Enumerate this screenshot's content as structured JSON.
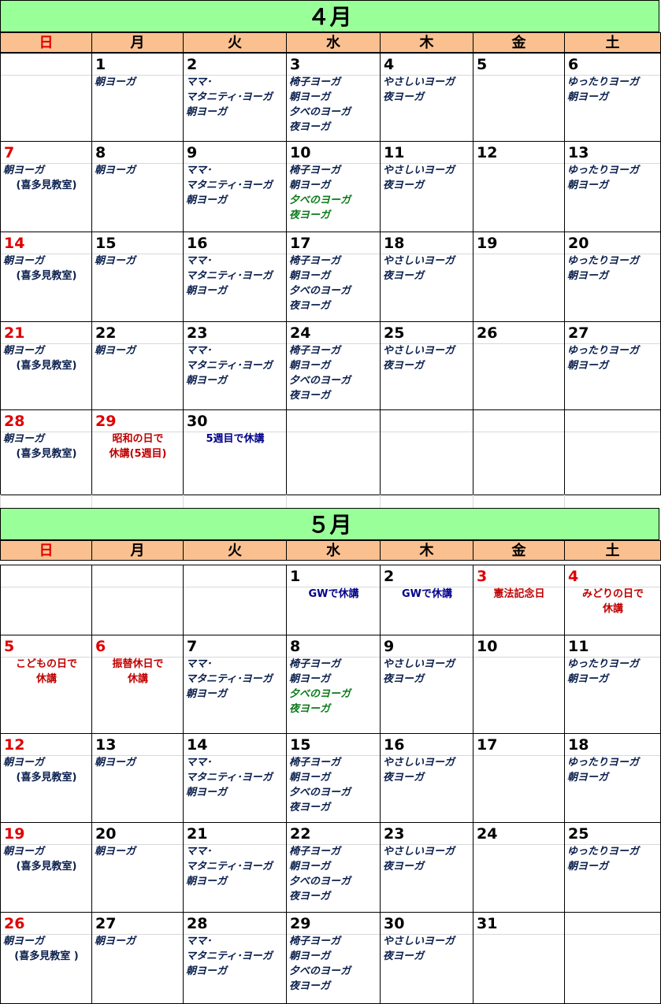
{
  "months": [
    {
      "title": "４月",
      "weekdays": [
        "日",
        "月",
        "火",
        "水",
        "木",
        "金",
        "土"
      ],
      "weeks": [
        [
          {
            "day": "",
            "red": false,
            "lines": []
          },
          {
            "day": "1",
            "lines": [
              {
                "t": "朝ヨーガ"
              }
            ]
          },
          {
            "day": "2",
            "lines": [
              {
                "t": "ママ･"
              },
              {
                "t": "マタニティ･ヨーガ"
              },
              {
                "t": "朝ヨーガ"
              }
            ]
          },
          {
            "day": "3",
            "lines": [
              {
                "t": "椅子ヨーガ"
              },
              {
                "t": "朝ヨーガ"
              },
              {
                "t": "夕べのヨーガ"
              },
              {
                "t": "夜ヨーガ"
              }
            ]
          },
          {
            "day": "4",
            "lines": [
              {
                "t": "やさしいヨーガ"
              },
              {
                "t": "夜ヨーガ"
              }
            ]
          },
          {
            "day": "5",
            "lines": []
          },
          {
            "day": "6",
            "lines": [
              {
                "t": "ゆったりヨーガ"
              },
              {
                "t": "朝ヨーガ"
              }
            ]
          }
        ],
        [
          {
            "day": "7",
            "red": true,
            "lines": [
              {
                "t": "朝ヨーガ"
              },
              {
                "t": "(喜多見教室)",
                "c": "center"
              }
            ]
          },
          {
            "day": "8",
            "lines": [
              {
                "t": "朝ヨーガ"
              }
            ]
          },
          {
            "day": "9",
            "lines": [
              {
                "t": "ママ･"
              },
              {
                "t": "マタニティ･ヨーガ"
              },
              {
                "t": "朝ヨーガ"
              }
            ]
          },
          {
            "day": "10",
            "lines": [
              {
                "t": "椅子ヨーガ"
              },
              {
                "t": "朝ヨーガ"
              },
              {
                "t": "夕べのヨーガ",
                "c": "green"
              },
              {
                "t": "夜ヨーガ",
                "c": "green"
              }
            ]
          },
          {
            "day": "11",
            "lines": [
              {
                "t": "やさしいヨーガ"
              },
              {
                "t": "夜ヨーガ"
              }
            ]
          },
          {
            "day": "12",
            "lines": []
          },
          {
            "day": "13",
            "lines": [
              {
                "t": "ゆったりヨーガ"
              },
              {
                "t": "朝ヨーガ"
              }
            ]
          }
        ],
        [
          {
            "day": "14",
            "red": true,
            "lines": [
              {
                "t": "朝ヨーガ"
              },
              {
                "t": "(喜多見教室)",
                "c": "center"
              }
            ]
          },
          {
            "day": "15",
            "lines": [
              {
                "t": "朝ヨーガ"
              }
            ]
          },
          {
            "day": "16",
            "lines": [
              {
                "t": "ママ･"
              },
              {
                "t": "マタニティ･ヨーガ"
              },
              {
                "t": "朝ヨーガ"
              }
            ]
          },
          {
            "day": "17",
            "lines": [
              {
                "t": "椅子ヨーガ"
              },
              {
                "t": "朝ヨーガ"
              },
              {
                "t": "夕べのヨーガ"
              },
              {
                "t": "夜ヨーガ"
              }
            ]
          },
          {
            "day": "18",
            "lines": [
              {
                "t": "やさしいヨーガ"
              },
              {
                "t": "夜ヨーガ"
              }
            ]
          },
          {
            "day": "19",
            "lines": []
          },
          {
            "day": "20",
            "lines": [
              {
                "t": "ゆったりヨーガ"
              },
              {
                "t": "朝ヨーガ"
              }
            ]
          }
        ],
        [
          {
            "day": "21",
            "red": true,
            "lines": [
              {
                "t": "朝ヨーガ"
              },
              {
                "t": "(喜多見教室)",
                "c": "center"
              }
            ]
          },
          {
            "day": "22",
            "lines": [
              {
                "t": "朝ヨーガ"
              }
            ]
          },
          {
            "day": "23",
            "lines": [
              {
                "t": "ママ･"
              },
              {
                "t": "マタニティ･ヨーガ"
              },
              {
                "t": "朝ヨーガ"
              }
            ]
          },
          {
            "day": "24",
            "lines": [
              {
                "t": "椅子ヨーガ"
              },
              {
                "t": "朝ヨーガ"
              },
              {
                "t": "夕べのヨーガ"
              },
              {
                "t": "夜ヨーガ"
              }
            ]
          },
          {
            "day": "25",
            "lines": [
              {
                "t": "やさしいヨーガ"
              },
              {
                "t": "夜ヨーガ"
              }
            ]
          },
          {
            "day": "26",
            "lines": []
          },
          {
            "day": "27",
            "lines": [
              {
                "t": "ゆったりヨーガ"
              },
              {
                "t": "朝ヨーガ"
              }
            ]
          }
        ],
        [
          {
            "day": "28",
            "red": true,
            "lines": [
              {
                "t": "朝ヨーガ"
              },
              {
                "t": "(喜多見教室)",
                "c": "center"
              }
            ]
          },
          {
            "day": "29",
            "red": true,
            "lines": [
              {
                "t": "昭和の日で",
                "c": "red"
              },
              {
                "t": "休講(5週目)",
                "c": "red"
              }
            ]
          },
          {
            "day": "30",
            "lines": [
              {
                "t": "5週目で休講",
                "c": "blue"
              }
            ]
          },
          {
            "day": "",
            "lines": []
          },
          {
            "day": "",
            "lines": []
          },
          {
            "day": "",
            "lines": []
          },
          {
            "day": "",
            "lines": []
          }
        ]
      ]
    },
    {
      "title": "５月",
      "weekdays": [
        "日",
        "月",
        "火",
        "水",
        "木",
        "金",
        "土"
      ],
      "weeks": [
        [
          {
            "day": "",
            "lines": []
          },
          {
            "day": "",
            "lines": []
          },
          {
            "day": "",
            "lines": []
          },
          {
            "day": "1",
            "lines": [
              {
                "t": "GWで休講",
                "c": "blue"
              }
            ]
          },
          {
            "day": "2",
            "lines": [
              {
                "t": "GWで休講",
                "c": "blue"
              }
            ]
          },
          {
            "day": "3",
            "red": true,
            "lines": [
              {
                "t": "憲法記念日",
                "c": "red"
              }
            ]
          },
          {
            "day": "4",
            "red": true,
            "lines": [
              {
                "t": "みどりの日で",
                "c": "red"
              },
              {
                "t": "休講",
                "c": "red"
              }
            ]
          }
        ],
        [
          {
            "day": "5",
            "red": true,
            "lines": [
              {
                "t": "こどもの日で",
                "c": "red"
              },
              {
                "t": "休講",
                "c": "red"
              }
            ]
          },
          {
            "day": "6",
            "red": true,
            "lines": [
              {
                "t": "振替休日で",
                "c": "red"
              },
              {
                "t": "休講",
                "c": "red"
              }
            ]
          },
          {
            "day": "7",
            "lines": [
              {
                "t": "ママ･"
              },
              {
                "t": "マタニティ･ヨーガ"
              },
              {
                "t": "朝ヨーガ"
              }
            ]
          },
          {
            "day": "8",
            "lines": [
              {
                "t": "椅子ヨーガ"
              },
              {
                "t": "朝ヨーガ"
              },
              {
                "t": "夕べのヨーガ",
                "c": "green"
              },
              {
                "t": "夜ヨーガ",
                "c": "green"
              }
            ]
          },
          {
            "day": "9",
            "lines": [
              {
                "t": "やさしいヨーガ"
              },
              {
                "t": "夜ヨーガ"
              }
            ]
          },
          {
            "day": "10",
            "lines": []
          },
          {
            "day": "11",
            "lines": [
              {
                "t": "ゆったりヨーガ"
              },
              {
                "t": "朝ヨーガ"
              }
            ]
          }
        ],
        [
          {
            "day": "12",
            "red": true,
            "lines": [
              {
                "t": "朝ヨーガ"
              },
              {
                "t": "(喜多見教室)",
                "c": "center"
              }
            ]
          },
          {
            "day": "13",
            "lines": [
              {
                "t": "朝ヨーガ"
              }
            ]
          },
          {
            "day": "14",
            "lines": [
              {
                "t": "ママ･"
              },
              {
                "t": "マタニティ･ヨーガ"
              },
              {
                "t": "朝ヨーガ"
              }
            ]
          },
          {
            "day": "15",
            "lines": [
              {
                "t": "椅子ヨーガ"
              },
              {
                "t": "朝ヨーガ"
              },
              {
                "t": "夕べのヨーガ"
              },
              {
                "t": "夜ヨーガ"
              }
            ]
          },
          {
            "day": "16",
            "lines": [
              {
                "t": "やさしいヨーガ"
              },
              {
                "t": "夜ヨーガ"
              }
            ]
          },
          {
            "day": "17",
            "lines": []
          },
          {
            "day": "18",
            "lines": [
              {
                "t": "ゆったりヨーガ"
              },
              {
                "t": "朝ヨーガ"
              }
            ]
          }
        ],
        [
          {
            "day": "19",
            "red": true,
            "lines": [
              {
                "t": "朝ヨーガ"
              },
              {
                "t": "(喜多見教室)",
                "c": "center"
              }
            ]
          },
          {
            "day": "20",
            "lines": [
              {
                "t": "朝ヨーガ"
              }
            ]
          },
          {
            "day": "21",
            "lines": [
              {
                "t": "ママ･"
              },
              {
                "t": "マタニティ･ヨーガ"
              },
              {
                "t": "朝ヨーガ"
              }
            ]
          },
          {
            "day": "22",
            "lines": [
              {
                "t": "椅子ヨーガ"
              },
              {
                "t": "朝ヨーガ"
              },
              {
                "t": "夕べのヨーガ"
              },
              {
                "t": "夜ヨーガ"
              }
            ]
          },
          {
            "day": "23",
            "lines": [
              {
                "t": "やさしいヨーガ"
              },
              {
                "t": "夜ヨーガ"
              }
            ]
          },
          {
            "day": "24",
            "lines": []
          },
          {
            "day": "25",
            "lines": [
              {
                "t": "ゆったりヨーガ"
              },
              {
                "t": "朝ヨーガ"
              }
            ]
          }
        ],
        [
          {
            "day": "26",
            "red": true,
            "lines": [
              {
                "t": "朝ヨーガ"
              },
              {
                "t": "(喜多見教室 )",
                "c": "center"
              }
            ]
          },
          {
            "day": "27",
            "lines": [
              {
                "t": "朝ヨーガ"
              }
            ]
          },
          {
            "day": "28",
            "lines": [
              {
                "t": "ママ･"
              },
              {
                "t": "マタニティ･ヨーガ"
              },
              {
                "t": "朝ヨーガ"
              }
            ]
          },
          {
            "day": "29",
            "lines": [
              {
                "t": "椅子ヨーガ"
              },
              {
                "t": "朝ヨーガ"
              },
              {
                "t": "夕べのヨーガ"
              },
              {
                "t": "夜ヨーガ"
              }
            ]
          },
          {
            "day": "30",
            "lines": [
              {
                "t": "やさしいヨーガ"
              },
              {
                "t": "夜ヨーガ"
              }
            ]
          },
          {
            "day": "31",
            "lines": []
          },
          {
            "day": "",
            "lines": []
          }
        ]
      ]
    }
  ],
  "colors": {
    "title_bg": "#99ff99",
    "weekday_bg": "#fac090",
    "sunday_text": "#e00000",
    "body_text": "#0a1f4d",
    "green_text": "#0a7a1a",
    "notice_red": "#c00000",
    "notice_blue": "#00008b"
  }
}
